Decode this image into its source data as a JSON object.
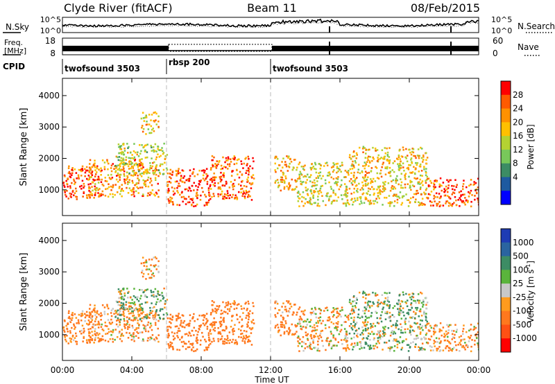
{
  "header": {
    "station": "Clyde River (fitACF)",
    "beam": "Beam 11",
    "date": "08/Feb/2015"
  },
  "noise_panel": {
    "left_label": "N.Sky",
    "left_ticks": [
      "10^5",
      "10^0"
    ],
    "right_ticks": [
      "10^5",
      "10^0"
    ],
    "right_label": "N.Search"
  },
  "freq_panel": {
    "left_label_line1": "Freq.",
    "left_label_line2": "[MHz]",
    "left_ticks": [
      "18",
      "8"
    ],
    "right_ticks": [
      "60",
      "0"
    ],
    "right_label": "Nave"
  },
  "cpid": {
    "label": "CPID",
    "segments": [
      {
        "name": "twofsound 3503",
        "start_hour": 0,
        "end_hour": 6
      },
      {
        "name": "rbsp 200",
        "start_hour": 6,
        "end_hour": 12
      },
      {
        "name": "twofsound 3503",
        "start_hour": 12,
        "end_hour": 24
      }
    ]
  },
  "colorbars": {
    "power": {
      "label": "Power [dB]",
      "ticks": [
        "28",
        "24",
        "20",
        "16",
        "12",
        "8",
        "4"
      ],
      "colors": [
        "#ff0000",
        "#ff5a00",
        "#ff9100",
        "#ffc000",
        "#b4d232",
        "#78c85a",
        "#3c8c64",
        "#1e5aa0",
        "#0000ff"
      ]
    },
    "velocity": {
      "label_main": "Velocity [m s",
      "label_sup": "-1",
      "label_end": "]",
      "ticks": [
        "1000",
        "500",
        "100",
        "25",
        "-25",
        "-100",
        "-500",
        "-1000"
      ],
      "colors": [
        "#1e3cb4",
        "#2a64a0",
        "#3c8c64",
        "#5ab43c",
        "#c8c8c8",
        "#ff9b1e",
        "#ff781e",
        "#ff5014",
        "#ff0000"
      ]
    }
  },
  "axes": {
    "ylabel": "Slant Range [km]",
    "xlabel": "Time UT",
    "x_ticks": [
      "00:00",
      "04:00",
      "08:00",
      "12:00",
      "16:00",
      "20:00",
      "00:00"
    ],
    "y_ticks": [
      "1000",
      "2000",
      "3000",
      "4000"
    ]
  },
  "chart_data": {
    "type": "heatmap",
    "title": "Clyde River (fitACF) Beam 11 08/Feb/2015",
    "xlabel": "Time UT",
    "ylabel": "Slant Range [km]",
    "x_range_hours": [
      0,
      24
    ],
    "y_range_km": [
      180,
      4550
    ],
    "x_ticks_hours": [
      0,
      4,
      8,
      12,
      16,
      20,
      24
    ],
    "y_ticks_km": [
      1000,
      2000,
      3000,
      4000
    ],
    "mode_changes_hours": [
      6,
      12
    ],
    "power_colorbar_ticks_db": [
      4,
      8,
      12,
      16,
      20,
      24,
      28
    ],
    "velocity_colorbar_ticks_ms": [
      -1000,
      -500,
      -100,
      -25,
      25,
      100,
      500,
      1000
    ],
    "scatter_regions": [
      {
        "t0": 0.0,
        "t1": 2.2,
        "r0": 700,
        "r1": 1800,
        "power_db": 26,
        "velocity_ms": -200
      },
      {
        "t0": 1.5,
        "t1": 5.5,
        "r0": 800,
        "r1": 2000,
        "power_db": 22,
        "velocity_ms": -150
      },
      {
        "t0": 3.0,
        "t1": 6.0,
        "r0": 1500,
        "r1": 2500,
        "power_db": 14,
        "velocity_ms": 60
      },
      {
        "t0": 4.5,
        "t1": 5.5,
        "r0": 2800,
        "r1": 3500,
        "power_db": 18,
        "velocity_ms": -120
      },
      {
        "t0": 6.0,
        "t1": 8.5,
        "r0": 500,
        "r1": 1700,
        "power_db": 27,
        "velocity_ms": -300
      },
      {
        "t0": 8.5,
        "t1": 11.0,
        "r0": 700,
        "r1": 2100,
        "power_db": 25,
        "velocity_ms": -250
      },
      {
        "t0": 12.2,
        "t1": 13.5,
        "r0": 1000,
        "r1": 2100,
        "power_db": 20,
        "velocity_ms": -200
      },
      {
        "t0": 13.5,
        "t1": 16.5,
        "r0": 500,
        "r1": 1900,
        "power_db": 16,
        "velocity_ms": -100
      },
      {
        "t0": 16.5,
        "t1": 21.0,
        "r0": 500,
        "r1": 2400,
        "power_db": 18,
        "velocity_ms": 50
      },
      {
        "t0": 21.0,
        "t1": 24.0,
        "r0": 500,
        "r1": 1400,
        "power_db": 27,
        "velocity_ms": -150
      }
    ]
  }
}
